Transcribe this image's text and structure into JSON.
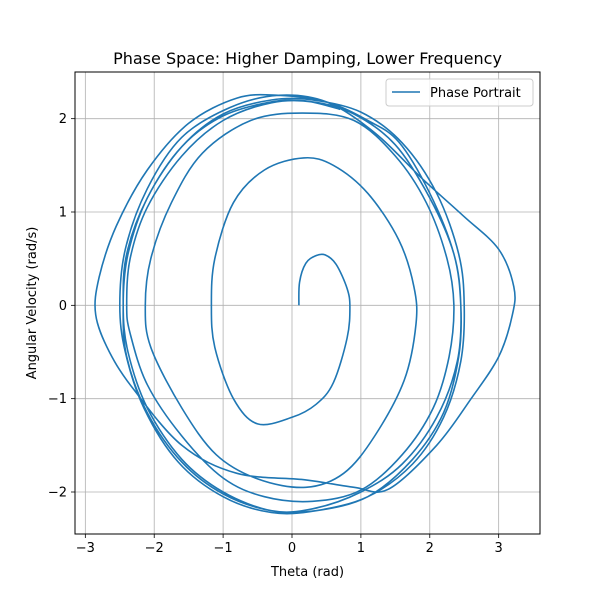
{
  "chart_data": {
    "type": "line",
    "title": "Phase Space: Higher Damping, Lower Frequency",
    "xlabel": "Theta (rad)",
    "ylabel": "Angular Velocity (rad/s)",
    "xlim": [
      -3.15,
      3.6
    ],
    "ylim": [
      -2.45,
      2.5
    ],
    "xticks": [
      -3,
      -2,
      -1,
      0,
      1,
      2,
      3
    ],
    "xtick_labels": [
      "−3",
      "−2",
      "−1",
      "0",
      "1",
      "2",
      "3"
    ],
    "yticks": [
      -2,
      -1,
      0,
      1,
      2
    ],
    "ytick_labels": [
      "−2",
      "−1",
      "0",
      "1",
      "2"
    ],
    "grid": true,
    "legend": {
      "position": "top-right",
      "entries": [
        "Phase Portrait"
      ]
    },
    "series": [
      {
        "name": "Phase Portrait",
        "color": "#1f77b4",
        "points": [
          [
            0.1,
            0.0
          ],
          [
            0.11,
            0.25
          ],
          [
            0.2,
            0.45
          ],
          [
            0.34,
            0.53
          ],
          [
            0.48,
            0.54
          ],
          [
            0.64,
            0.44
          ],
          [
            0.8,
            0.18
          ],
          [
            0.84,
            -0.02
          ],
          [
            0.8,
            -0.35
          ],
          [
            0.6,
            -0.83
          ],
          [
            0.35,
            -1.06
          ],
          [
            0.0,
            -1.2
          ],
          [
            -0.5,
            -1.27
          ],
          [
            -0.85,
            -1.0
          ],
          [
            -1.12,
            -0.45
          ],
          [
            -1.17,
            0.0
          ],
          [
            -1.12,
            0.5
          ],
          [
            -0.85,
            1.1
          ],
          [
            -0.4,
            1.45
          ],
          [
            0.17,
            1.58
          ],
          [
            0.6,
            1.5
          ],
          [
            1.1,
            1.2
          ],
          [
            1.55,
            0.7
          ],
          [
            1.77,
            0.2
          ],
          [
            1.8,
            -0.2
          ],
          [
            1.63,
            -0.8
          ],
          [
            1.2,
            -1.4
          ],
          [
            0.75,
            -1.8
          ],
          [
            0.2,
            -1.95
          ],
          [
            -0.5,
            -1.86
          ],
          [
            -1.1,
            -1.6
          ],
          [
            -1.6,
            -1.1
          ],
          [
            -2.05,
            -0.45
          ],
          [
            -2.13,
            0.0
          ],
          [
            -2.05,
            0.5
          ],
          [
            -1.75,
            1.1
          ],
          [
            -1.3,
            1.63
          ],
          [
            -0.6,
            1.98
          ],
          [
            0.15,
            2.06
          ],
          [
            0.9,
            1.98
          ],
          [
            1.5,
            1.6
          ],
          [
            1.95,
            1.1
          ],
          [
            2.25,
            0.5
          ],
          [
            2.35,
            0.0
          ],
          [
            2.28,
            -0.55
          ],
          [
            2.05,
            -1.1
          ],
          [
            1.6,
            -1.6
          ],
          [
            1.0,
            -1.98
          ],
          [
            0.3,
            -2.1
          ],
          [
            -0.4,
            -2.05
          ],
          [
            -1.0,
            -1.85
          ],
          [
            -1.6,
            -1.4
          ],
          [
            -2.1,
            -0.85
          ],
          [
            -2.35,
            -0.3
          ],
          [
            -2.4,
            0.0
          ],
          [
            -2.35,
            0.5
          ],
          [
            -2.1,
            1.05
          ],
          [
            -1.6,
            1.6
          ],
          [
            -1.0,
            1.98
          ],
          [
            -0.3,
            2.17
          ],
          [
            0.3,
            2.18
          ],
          [
            0.9,
            2.05
          ],
          [
            1.5,
            1.72
          ],
          [
            2.0,
            1.15
          ],
          [
            2.35,
            0.55
          ],
          [
            2.45,
            0.0
          ],
          [
            2.4,
            -0.6
          ],
          [
            2.1,
            -1.2
          ],
          [
            1.6,
            -1.7
          ],
          [
            1.0,
            -2.0
          ],
          [
            0.3,
            -2.18
          ],
          [
            -0.3,
            -2.2
          ],
          [
            -1.0,
            -2.0
          ],
          [
            -1.6,
            -1.65
          ],
          [
            -2.1,
            -1.1
          ],
          [
            -2.38,
            -0.5
          ],
          [
            -2.45,
            0.0
          ],
          [
            -2.38,
            0.55
          ],
          [
            -2.1,
            1.15
          ],
          [
            -1.6,
            1.7
          ],
          [
            -1.0,
            2.05
          ],
          [
            -0.3,
            2.2
          ],
          [
            0.3,
            2.2
          ],
          [
            1.0,
            2.07
          ],
          [
            1.6,
            1.74
          ],
          [
            2.1,
            1.2
          ],
          [
            2.42,
            0.55
          ],
          [
            2.5,
            0.0
          ],
          [
            2.45,
            -0.6
          ],
          [
            2.2,
            -1.2
          ],
          [
            1.75,
            -1.7
          ],
          [
            1.1,
            -2.05
          ],
          [
            0.35,
            -2.2
          ],
          [
            -0.3,
            -2.22
          ],
          [
            -1.0,
            -2.05
          ],
          [
            -1.65,
            -1.68
          ],
          [
            -2.15,
            -1.1
          ],
          [
            -2.42,
            -0.5
          ],
          [
            -2.5,
            0.0
          ],
          [
            -2.42,
            0.6
          ],
          [
            -2.1,
            1.25
          ],
          [
            -1.6,
            1.8
          ],
          [
            -0.9,
            2.12
          ],
          [
            -0.2,
            2.25
          ],
          [
            0.5,
            2.18
          ],
          [
            1.2,
            1.85
          ],
          [
            1.9,
            1.35
          ],
          [
            2.5,
            0.95
          ],
          [
            3.0,
            0.6
          ],
          [
            3.22,
            0.2
          ],
          [
            3.2,
            -0.1
          ],
          [
            3.0,
            -0.55
          ],
          [
            2.6,
            -1.0
          ],
          [
            2.1,
            -1.5
          ],
          [
            1.4,
            -1.97
          ],
          [
            0.9,
            -1.95
          ],
          [
            0.2,
            -1.87
          ],
          [
            -0.8,
            -1.8
          ],
          [
            -1.6,
            -1.5
          ],
          [
            -2.3,
            -0.9
          ],
          [
            -2.65,
            -0.5
          ],
          [
            -2.85,
            -0.1
          ],
          [
            -2.8,
            0.3
          ],
          [
            -2.55,
            0.85
          ],
          [
            -2.1,
            1.45
          ],
          [
            -1.5,
            1.95
          ],
          [
            -0.8,
            2.22
          ],
          [
            -0.2,
            2.25
          ],
          [
            0.5,
            2.18
          ],
          [
            1.1,
            1.98
          ],
          [
            1.55,
            1.75
          ],
          [
            2.0,
            1.2
          ],
          [
            2.35,
            0.55
          ],
          [
            2.45,
            0.0
          ],
          [
            2.42,
            -0.55
          ],
          [
            2.2,
            -1.15
          ],
          [
            1.75,
            -1.65
          ],
          [
            1.1,
            -2.05
          ],
          [
            0.35,
            -2.2
          ],
          [
            -0.3,
            -2.2
          ],
          [
            -1.0,
            -2.02
          ],
          [
            -1.6,
            -1.68
          ],
          [
            -2.1,
            -1.15
          ],
          [
            -2.4,
            -0.55
          ],
          [
            -2.45,
            0.0
          ],
          [
            -2.4,
            0.55
          ],
          [
            -2.1,
            1.15
          ],
          [
            -1.6,
            1.7
          ],
          [
            -1.0,
            2.03
          ],
          [
            -0.3,
            2.18
          ],
          [
            0.2,
            2.19
          ],
          [
            0.7,
            2.1
          ]
        ]
      }
    ]
  }
}
